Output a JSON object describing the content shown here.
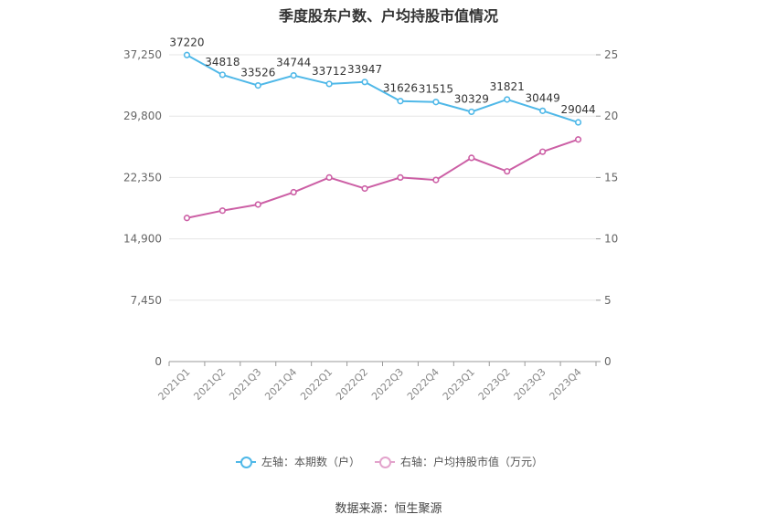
{
  "chart_data": {
    "type": "line",
    "title": "季度股东户数、户均持股市值情况",
    "categories": [
      "2021Q1",
      "2021Q2",
      "2021Q3",
      "2021Q4",
      "2022Q1",
      "2022Q2",
      "2022Q3",
      "2022Q4",
      "2023Q1",
      "2023Q2",
      "2023Q3",
      "2023Q4"
    ],
    "left_axis": {
      "ticks": [
        "0",
        "7,450",
        "14,900",
        "22,350",
        "29,800",
        "37,250"
      ],
      "ylim": [
        0,
        37250
      ]
    },
    "right_axis": {
      "ticks": [
        "0",
        "5",
        "10",
        "15",
        "20",
        "25"
      ],
      "ylim": [
        0,
        25
      ]
    },
    "grid": true,
    "series": [
      {
        "name": "左轴：本期数（户）",
        "axis": "left",
        "color": "#4fb8e8",
        "values": [
          37220,
          34818,
          33526,
          34744,
          33712,
          33947,
          31626,
          31515,
          30329,
          31821,
          30449,
          29044
        ],
        "labels": [
          "37220",
          "34818",
          "33526",
          "34744",
          "33712",
          "33947",
          "31626",
          "31515",
          "30329",
          "31821",
          "30449",
          "29044"
        ]
      },
      {
        "name": "右轴：户均持股市值（万元）",
        "axis": "right",
        "color": "#cc5fa5",
        "values": [
          11.7,
          12.3,
          12.8,
          13.8,
          15.0,
          14.1,
          15.0,
          14.8,
          16.6,
          15.5,
          17.1,
          18.1
        ]
      }
    ],
    "legend_position": "bottom"
  },
  "source": "数据来源：恒生聚源"
}
